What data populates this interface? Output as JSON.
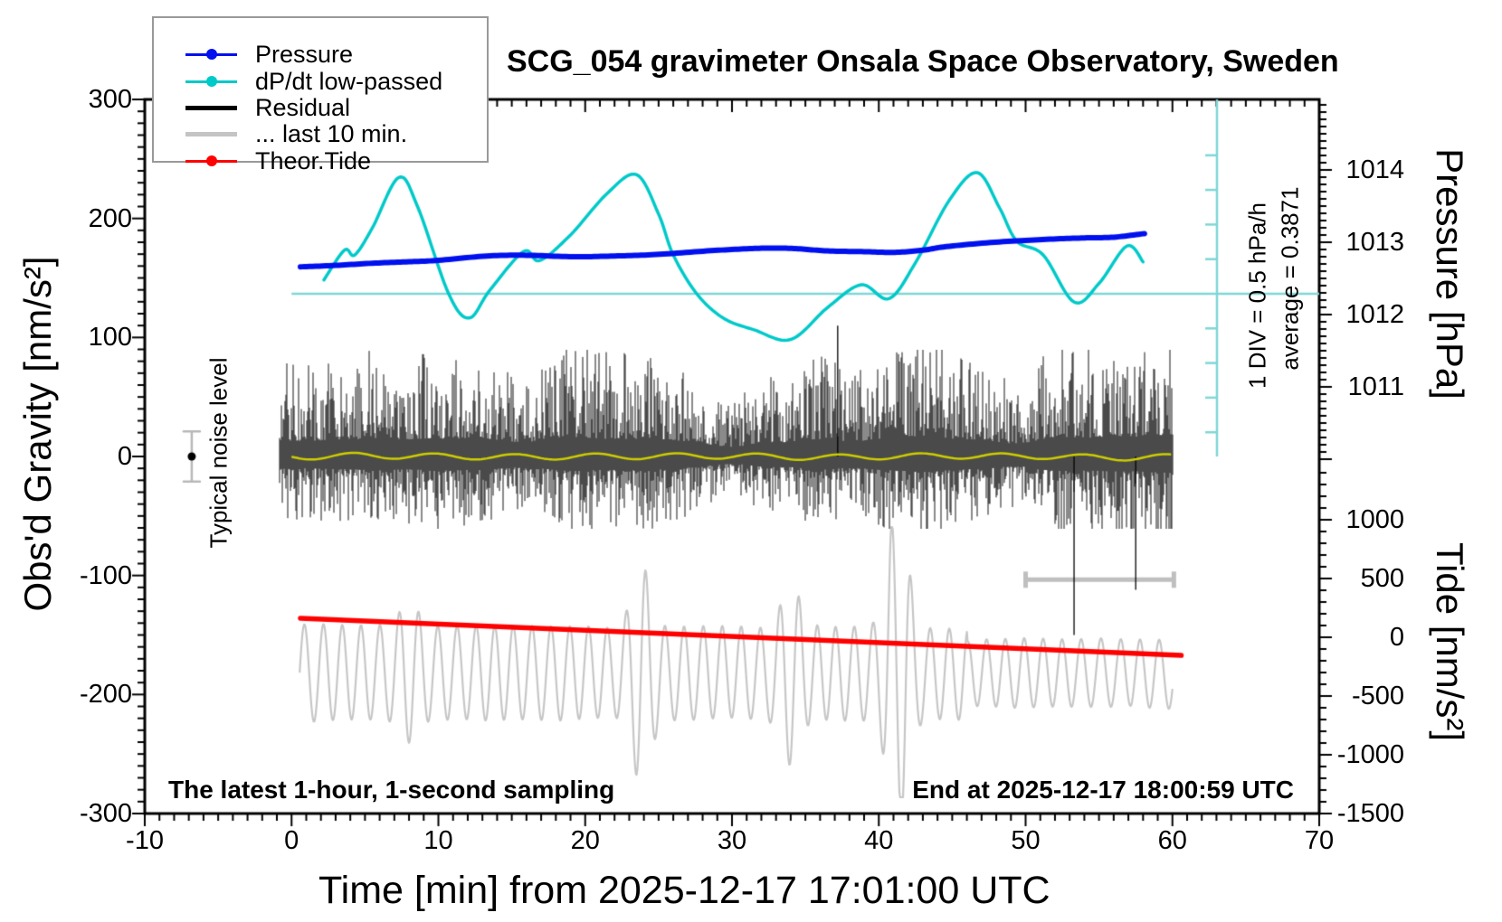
{
  "title": "SCG_054 gravimeter Onsala Space Observatory, Sweden",
  "annotations": {
    "sampling_note": "The latest 1-hour, 1-second sampling",
    "end_note": "End at 2025-12-17 18:00:59 UTC",
    "div_scale": "1 DIV = 0.5 hPa/h",
    "average": "average = 0.3871",
    "noise_label": "Typical noise level"
  },
  "axes": {
    "x": {
      "label": "Time [min] from 2025-12-17 17:01:00 UTC",
      "range": [
        -10,
        70
      ],
      "tick_values": [
        -10,
        0,
        10,
        20,
        30,
        40,
        50,
        60,
        70
      ],
      "tick_labels": [
        "-10",
        "0",
        "10",
        "20",
        "30",
        "40",
        "50",
        "60",
        "70"
      ],
      "minor_step": 1
    },
    "gravity": {
      "label": "Obs'd Gravity [nm/s²]",
      "range": [
        -300,
        300
      ],
      "tick_values": [
        300,
        200,
        100,
        0,
        -100,
        -200,
        -300
      ],
      "tick_labels": [
        "300",
        "200",
        "100",
        "0",
        "-100",
        "-200",
        "-300"
      ],
      "minor_step": 10
    },
    "pressure": {
      "label": "Pressure [hPa]",
      "tick_values": [
        1014,
        1013,
        1012,
        1011
      ],
      "tick_labels": [
        "1014",
        "1013",
        "1012",
        "1011"
      ],
      "minor_step": 0.1
    },
    "tide": {
      "label": "Tide [nm/s²]",
      "tick_values": [
        1000,
        500,
        0,
        -500,
        -1000,
        -1500
      ],
      "tick_labels": [
        "1000",
        "500",
        "0",
        "-500",
        "-1000",
        "-1500"
      ],
      "minor_step": 100
    }
  },
  "legend": {
    "items": [
      {
        "label": "Pressure",
        "color": "#0010ee",
        "style": "dot-line"
      },
      {
        "label": "dP/dt low-passed",
        "color": "#00c9c9",
        "style": "dot-line"
      },
      {
        "label": "Residual",
        "color": "#000000",
        "style": "thick-line"
      },
      {
        "label": "... last 10 min.",
        "color": "#c4c4c4",
        "style": "thick-line"
      },
      {
        "label": "Theor.Tide",
        "color": "#ff0000",
        "style": "dot-line"
      }
    ]
  },
  "colors": {
    "frame": "#000000",
    "pressure_line": "#0010ee",
    "dpdt_line": "#00c9c9",
    "dpdt_reference": "#7fd6d6",
    "residual": "#000000",
    "residual_smoothed": "#cdcd00",
    "last10": "#c6c6c6",
    "tide_line": "#ff0000",
    "noise_bar": "#b8b8b8"
  },
  "chart_data": {
    "type": "line",
    "title": "SCG_054 gravimeter Onsala Space Observatory, Sweden",
    "xlabel": "Time [min] from 2025-12-17 17:01:00 UTC",
    "x_range": [
      -10,
      70
    ],
    "gravity_range": [
      -300,
      300
    ],
    "series": [
      {
        "name": "Pressure",
        "axis": "pressure",
        "unit": "hPa",
        "color": "#0010ee",
        "points": [
          [
            0.6,
            1012.66
          ],
          [
            3,
            1012.68
          ],
          [
            5.5,
            1012.71
          ],
          [
            8,
            1012.73
          ],
          [
            10,
            1012.75
          ],
          [
            13.3,
            1012.81
          ],
          [
            16,
            1012.82
          ],
          [
            19.2,
            1012.8
          ],
          [
            22,
            1012.81
          ],
          [
            24.8,
            1012.83
          ],
          [
            28.3,
            1012.88
          ],
          [
            31,
            1012.91
          ],
          [
            32.9,
            1012.92
          ],
          [
            34.5,
            1012.91
          ],
          [
            36.5,
            1012.88
          ],
          [
            39,
            1012.87
          ],
          [
            41.1,
            1012.86
          ],
          [
            43,
            1012.89
          ],
          [
            44.6,
            1012.94
          ],
          [
            47.9,
            1013.0
          ],
          [
            51.4,
            1013.04
          ],
          [
            54,
            1013.06
          ],
          [
            56,
            1013.07
          ],
          [
            58.1,
            1013.12
          ]
        ]
      },
      {
        "name": "dP/dt low-passed",
        "axis": "dpdt",
        "unit": "hPa/h",
        "color": "#00c9c9",
        "div_value": 0.5,
        "average": 0.3871,
        "reference_gravity_level": 137,
        "points": [
          [
            2.2,
            0.2
          ],
          [
            3.6,
            0.63
          ],
          [
            4.3,
            0.56
          ],
          [
            5.5,
            0.95
          ],
          [
            7.3,
            1.68
          ],
          [
            8.6,
            1.25
          ],
          [
            10.7,
            0.0
          ],
          [
            12.1,
            -0.35
          ],
          [
            13.5,
            0.05
          ],
          [
            15.8,
            0.61
          ],
          [
            16.9,
            0.48
          ],
          [
            19,
            0.85
          ],
          [
            21.5,
            1.45
          ],
          [
            23.5,
            1.72
          ],
          [
            25,
            1.15
          ],
          [
            26,
            0.56
          ],
          [
            27.6,
            0.0
          ],
          [
            29.4,
            -0.35
          ],
          [
            31.5,
            -0.52
          ],
          [
            34.0,
            -0.66
          ],
          [
            36.5,
            -0.2
          ],
          [
            38.8,
            0.13
          ],
          [
            40.7,
            -0.07
          ],
          [
            42.5,
            0.45
          ],
          [
            44.8,
            1.35
          ],
          [
            46.7,
            1.75
          ],
          [
            48.2,
            1.25
          ],
          [
            49.4,
            0.76
          ],
          [
            51.2,
            0.56
          ],
          [
            53.3,
            -0.12
          ],
          [
            55,
            0.15
          ],
          [
            56.9,
            0.69
          ],
          [
            58.0,
            0.46
          ]
        ]
      },
      {
        "name": "Residual",
        "axis": "gravity",
        "unit": "nm/s²",
        "color": "#000000",
        "description": "1-second residual noise band centred on 0",
        "center": 0,
        "typical_range": [
          -60,
          95
        ],
        "extreme_spikes": [
          [
            37.2,
            110
          ],
          [
            53.3,
            -150
          ],
          [
            57.5,
            -112
          ]
        ],
        "t_range": [
          -0.8,
          60
        ]
      },
      {
        "name": "Residual smoothed",
        "axis": "gravity",
        "unit": "nm/s²",
        "color": "#cdcd00",
        "description": "yellow running-mean of residual",
        "center": 0,
        "wiggle": 5,
        "t_range": [
          0,
          60
        ]
      },
      {
        "name": "... last 10 min.",
        "axis": "gravity",
        "unit": "nm/s²",
        "color": "#c6c6c6",
        "description": "last 10 minutes of residual re-plotted across full hour, offset down",
        "center": -182,
        "typical_amplitude": 42,
        "bursts": [
          [
            8,
            0.5
          ],
          [
            23.8,
            1.5
          ],
          [
            34,
            1.0
          ],
          [
            41.3,
            3.1
          ]
        ],
        "t_range": [
          0.55,
          60
        ]
      },
      {
        "name": "Theor.Tide",
        "axis": "tide",
        "unit": "nm/s²",
        "color": "#ff0000",
        "points": [
          [
            0.6,
            162
          ],
          [
            60.6,
            -154
          ]
        ]
      }
    ],
    "noise_marker": {
      "t": -6.8,
      "gravity": 0,
      "error": 21
    },
    "last10_bar": {
      "t_start": 50,
      "t_end": 60.1,
      "tide_value": 490
    },
    "legend_position": "top-left",
    "grid": false
  }
}
